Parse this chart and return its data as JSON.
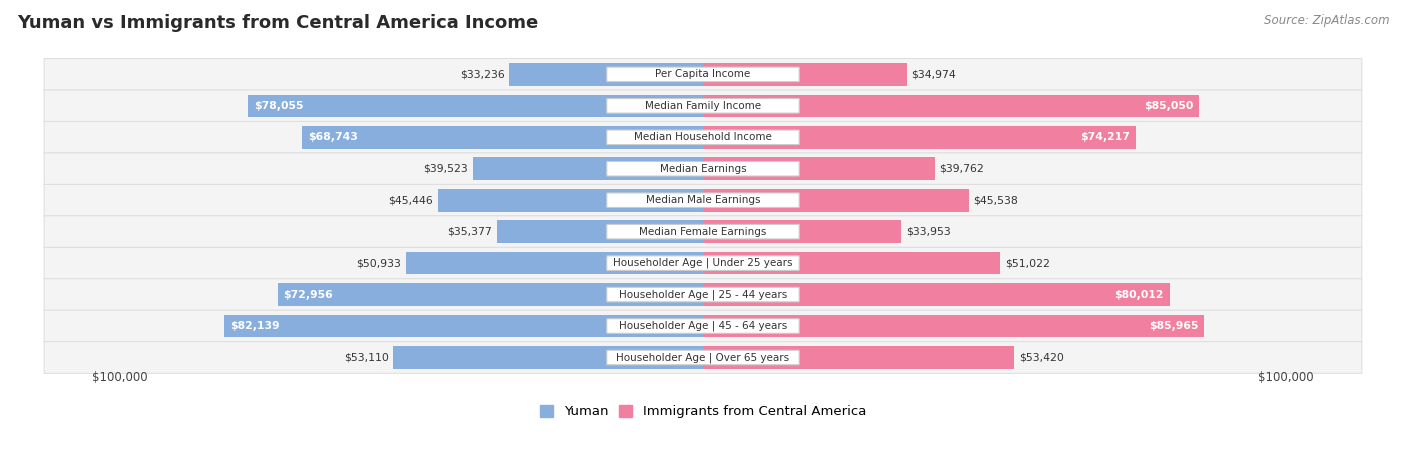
{
  "title": "Yuman vs Immigrants from Central America Income",
  "source": "Source: ZipAtlas.com",
  "categories": [
    "Per Capita Income",
    "Median Family Income",
    "Median Household Income",
    "Median Earnings",
    "Median Male Earnings",
    "Median Female Earnings",
    "Householder Age | Under 25 years",
    "Householder Age | 25 - 44 years",
    "Householder Age | 45 - 64 years",
    "Householder Age | Over 65 years"
  ],
  "yuman_values": [
    33236,
    78055,
    68743,
    39523,
    45446,
    35377,
    50933,
    72956,
    82139,
    53110
  ],
  "immigrant_values": [
    34974,
    85050,
    74217,
    39762,
    45538,
    33953,
    51022,
    80012,
    85965,
    53420
  ],
  "yuman_color": "#88AEDD",
  "immigrant_color": "#F07FA0",
  "max_value": 100000,
  "xlabel_left": "$100,000",
  "xlabel_right": "$100,000",
  "label_threshold": 55000,
  "row_bg_color": "#F0F0F0",
  "row_border_color": "#DDDDDD"
}
